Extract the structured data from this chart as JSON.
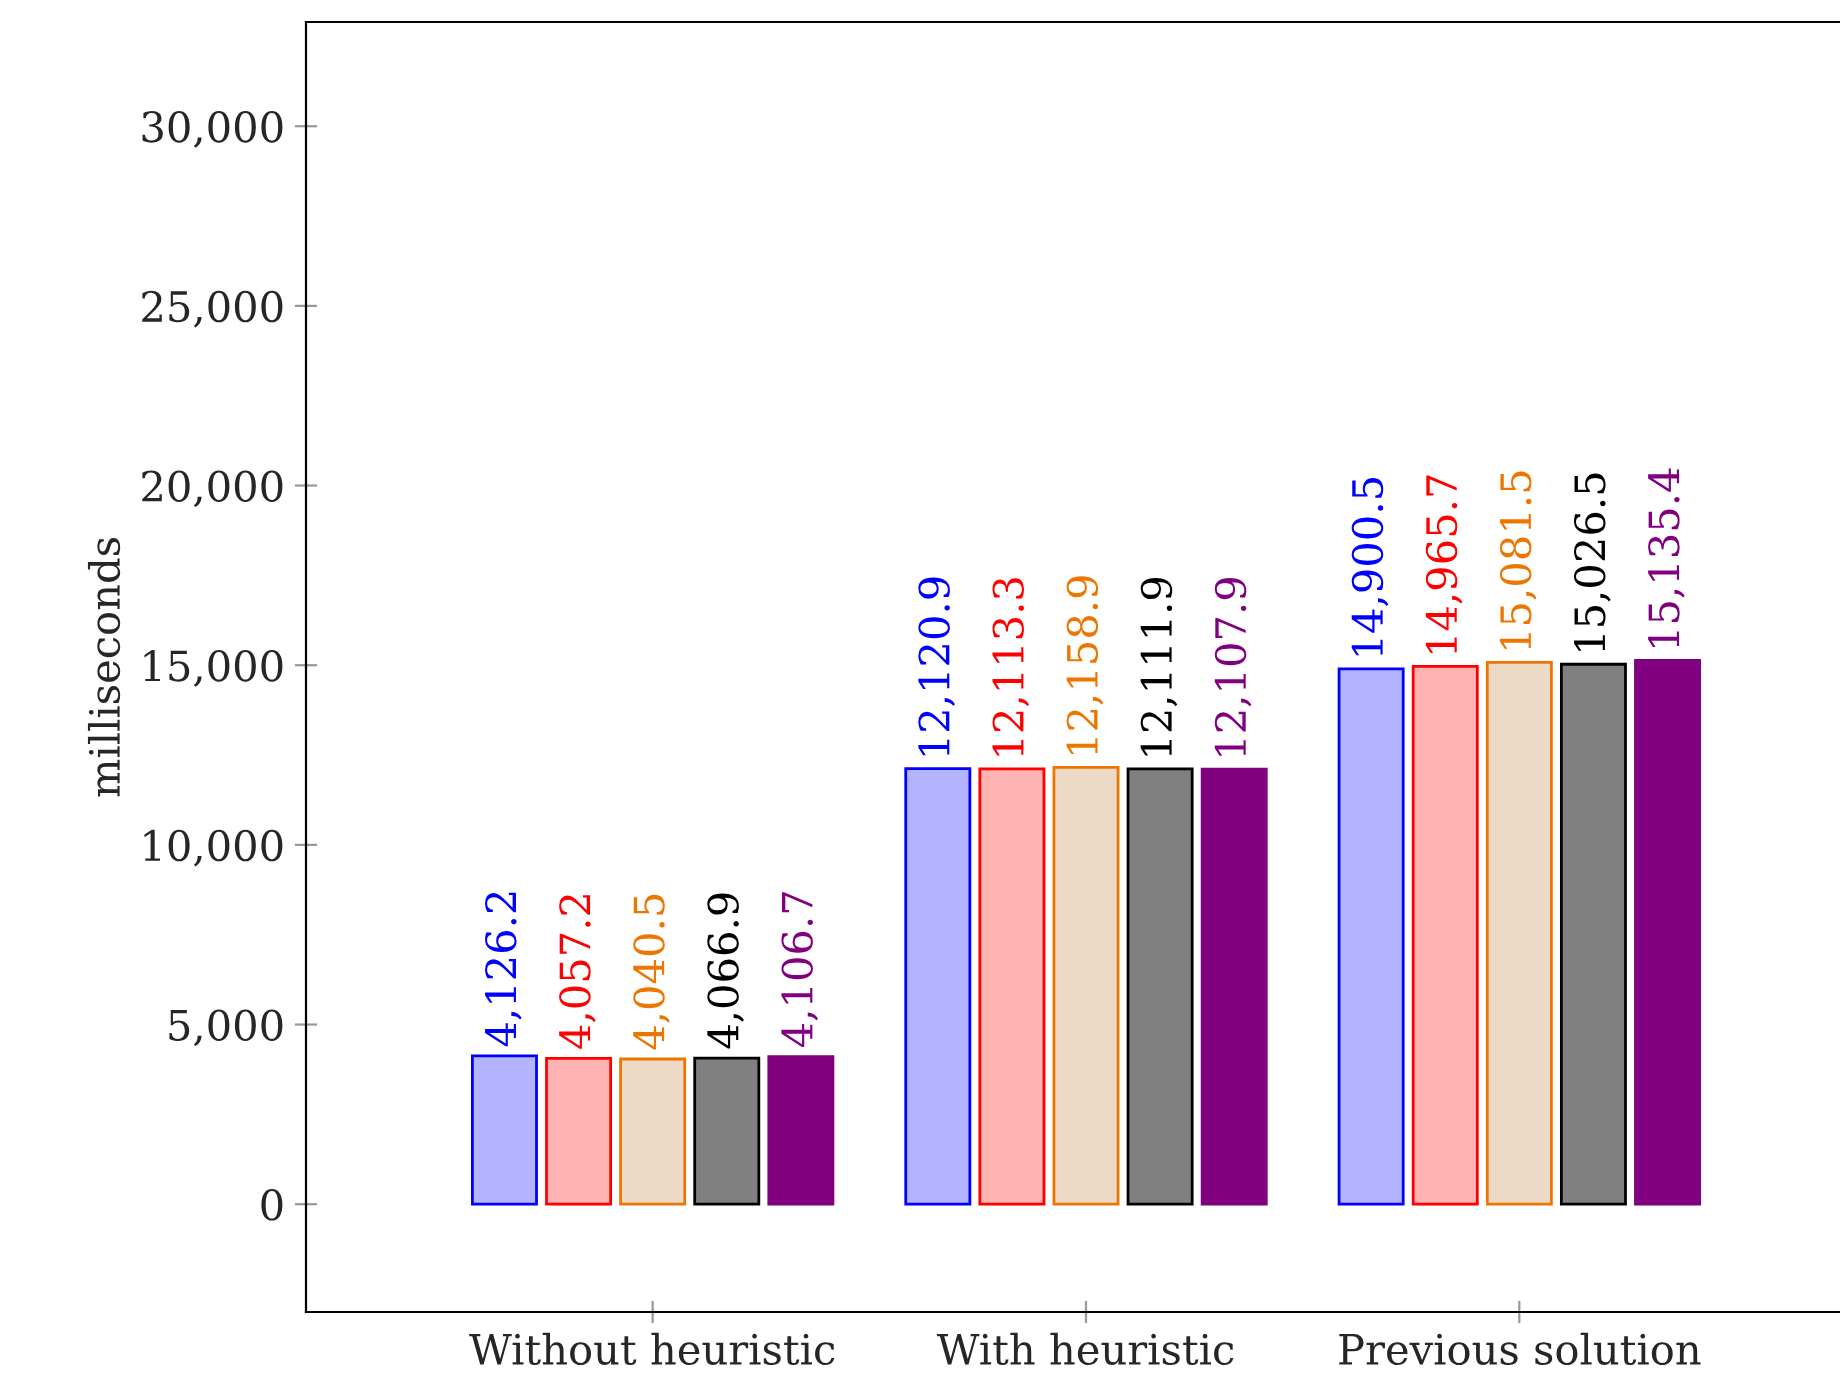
{
  "chart_data": {
    "type": "bar",
    "ylabel": "milliseconds",
    "categories": [
      "Without heuristic",
      "With heuristic",
      "Previous solution"
    ],
    "series": [
      {
        "color": "#b3b3ff",
        "values": [
          4126.2,
          12120.9,
          14900.5
        ],
        "value_labels": [
          "4,126.2",
          "12,120.9",
          "14,900.5"
        ]
      },
      {
        "color": "#ffb3b3",
        "values": [
          4057.2,
          12113.3,
          14965.7
        ],
        "value_labels": [
          "4,057.2",
          "12,113.3",
          "14,965.7"
        ]
      },
      {
        "color": "#ecd9c6",
        "values": [
          4040.5,
          12158.9,
          15081.5
        ],
        "value_labels": [
          "4,040.5",
          "12,158.9",
          "15,081.5"
        ]
      },
      {
        "color": "#808080",
        "values": [
          4066.9,
          12111.9,
          15026.5
        ],
        "value_labels": [
          "4,066.9",
          "12,111.9",
          "15,026.5"
        ]
      },
      {
        "color": "#800080",
        "values": [
          4106.7,
          12107.9,
          15135.4
        ],
        "value_labels": [
          "4,106.7",
          "12,107.9",
          "15,135.4"
        ]
      }
    ],
    "ylim": [
      -3000,
      32900
    ],
    "yticks": [
      {
        "value": 0,
        "label": "0"
      },
      {
        "value": 5000,
        "label": "5,000"
      },
      {
        "value": 10000,
        "label": "10,000"
      },
      {
        "value": 15000,
        "label": "15,000"
      },
      {
        "value": 20000,
        "label": "20,000"
      },
      {
        "value": 25000,
        "label": "25,000"
      },
      {
        "value": 30000,
        "label": "30,000"
      }
    ],
    "grid": false
  }
}
